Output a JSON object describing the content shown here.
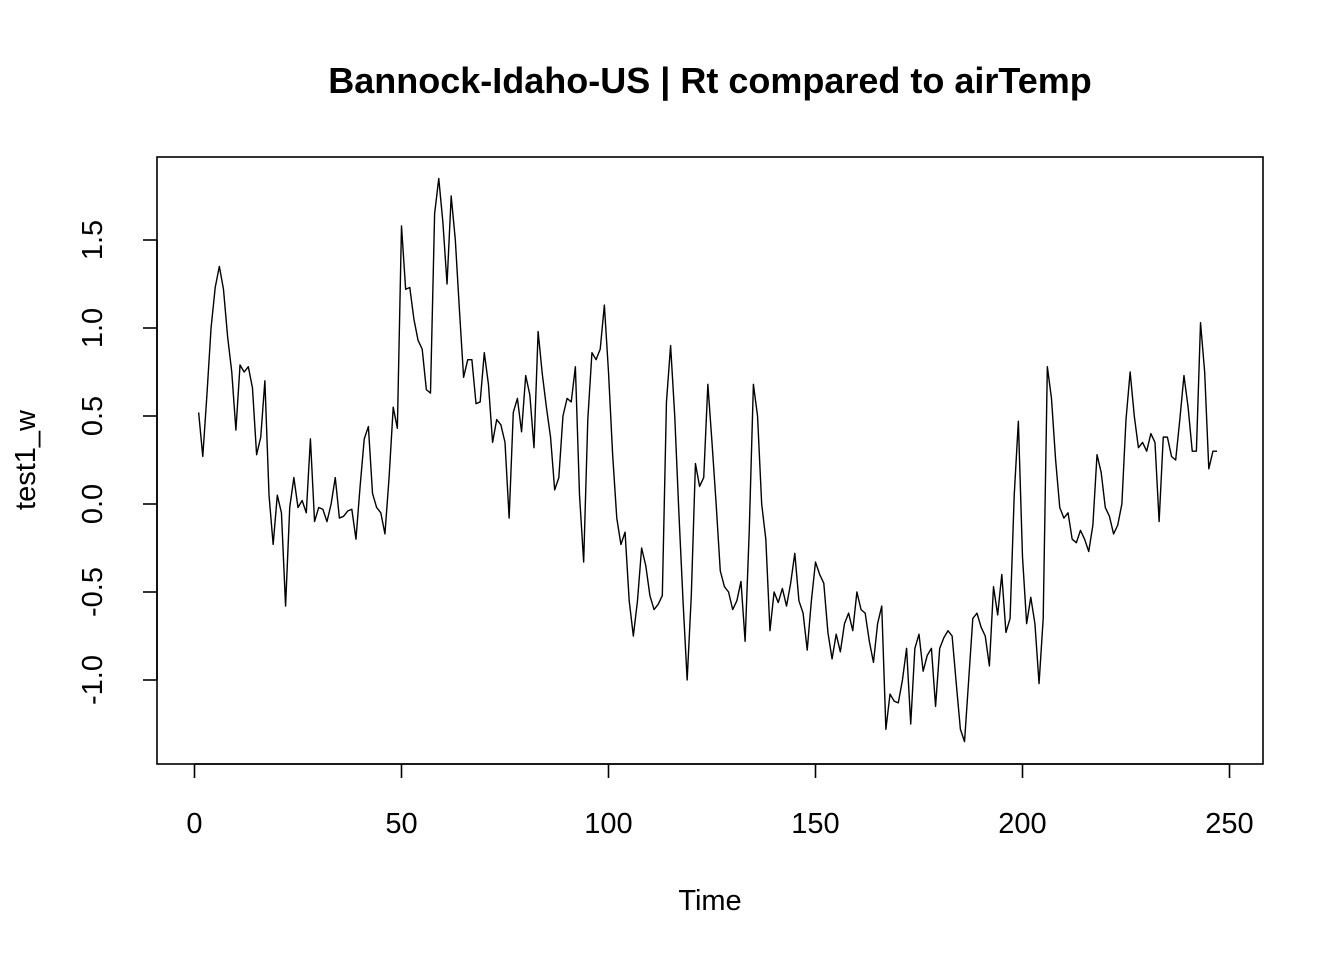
{
  "chart_data": {
    "type": "line",
    "title": "Bannock-Idaho-US | Rt compared to airTemp",
    "xlabel": "Time",
    "ylabel": "test1_w",
    "xlim": [
      0,
      250
    ],
    "ylim": [
      -1.4,
      1.9
    ],
    "x_ticks": [
      0,
      50,
      100,
      150,
      200,
      250
    ],
    "y_ticks": [
      -1.0,
      -0.5,
      0.0,
      0.5,
      1.0,
      1.5
    ],
    "x_tick_labels": [
      "0",
      "50",
      "100",
      "150",
      "200",
      "250"
    ],
    "y_tick_labels": [
      "-1.0",
      "-0.5",
      "0.0",
      "0.5",
      "1.0",
      "1.5"
    ],
    "grid": false,
    "x_start": 1,
    "series": [
      {
        "values": [
          0.52,
          0.27,
          0.62,
          1.0,
          1.23,
          1.35,
          1.22,
          0.95,
          0.75,
          0.42,
          0.79,
          0.75,
          0.78,
          0.66,
          0.28,
          0.38,
          0.7,
          0.05,
          -0.23,
          0.05,
          -0.05,
          -0.58,
          -0.02,
          0.15,
          -0.02,
          0.02,
          -0.05,
          0.37,
          -0.1,
          -0.02,
          -0.03,
          -0.1,
          0.0,
          0.15,
          -0.08,
          -0.07,
          -0.04,
          -0.03,
          -0.2,
          0.1,
          0.37,
          0.44,
          0.06,
          -0.02,
          -0.05,
          -0.17,
          0.15,
          0.55,
          0.43,
          1.58,
          1.22,
          1.23,
          1.05,
          0.93,
          0.88,
          0.65,
          0.63,
          1.65,
          1.85,
          1.6,
          1.25,
          1.75,
          1.5,
          1.1,
          0.72,
          0.82,
          0.82,
          0.57,
          0.58,
          0.86,
          0.68,
          0.35,
          0.48,
          0.45,
          0.35,
          -0.08,
          0.52,
          0.6,
          0.41,
          0.73,
          0.62,
          0.32,
          0.98,
          0.74,
          0.55,
          0.38,
          0.08,
          0.15,
          0.5,
          0.6,
          0.58,
          0.78,
          0.05,
          -0.33,
          0.48,
          0.86,
          0.82,
          0.88,
          1.13,
          0.75,
          0.28,
          -0.08,
          -0.23,
          -0.16,
          -0.55,
          -0.75,
          -0.55,
          -0.25,
          -0.35,
          -0.52,
          -0.6,
          -0.57,
          -0.52,
          0.58,
          0.9,
          0.5,
          -0.05,
          -0.55,
          -1.0,
          -0.52,
          0.23,
          0.1,
          0.15,
          0.68,
          0.35,
          0.0,
          -0.38,
          -0.47,
          -0.5,
          -0.6,
          -0.55,
          -0.44,
          -0.78,
          -0.15,
          0.68,
          0.5,
          0.0,
          -0.2,
          -0.72,
          -0.5,
          -0.56,
          -0.48,
          -0.58,
          -0.45,
          -0.28,
          -0.55,
          -0.62,
          -0.83,
          -0.55,
          -0.33,
          -0.4,
          -0.45,
          -0.73,
          -0.88,
          -0.74,
          -0.84,
          -0.68,
          -0.62,
          -0.72,
          -0.5,
          -0.6,
          -0.62,
          -0.78,
          -0.9,
          -0.68,
          -0.58,
          -1.28,
          -1.08,
          -1.12,
          -1.13,
          -1.0,
          -0.82,
          -1.25,
          -0.82,
          -0.74,
          -0.95,
          -0.86,
          -0.82,
          -1.15,
          -0.82,
          -0.76,
          -0.72,
          -0.75,
          -1.02,
          -1.28,
          -1.35,
          -1.0,
          -0.65,
          -0.62,
          -0.7,
          -0.75,
          -0.92,
          -0.47,
          -0.63,
          -0.4,
          -0.73,
          -0.65,
          0.05,
          0.47,
          -0.3,
          -0.68,
          -0.53,
          -0.68,
          -1.02,
          -0.65,
          0.78,
          0.6,
          0.25,
          -0.02,
          -0.08,
          -0.05,
          -0.2,
          -0.22,
          -0.15,
          -0.2,
          -0.27,
          -0.12,
          0.28,
          0.18,
          -0.02,
          -0.07,
          -0.17,
          -0.12,
          0.0,
          0.48,
          0.75,
          0.5,
          0.32,
          0.35,
          0.3,
          0.4,
          0.35,
          -0.1,
          0.38,
          0.38,
          0.27,
          0.25,
          0.48,
          0.73,
          0.55,
          0.3,
          0.3,
          1.03,
          0.75,
          0.2,
          0.3,
          0.3
        ]
      }
    ]
  }
}
